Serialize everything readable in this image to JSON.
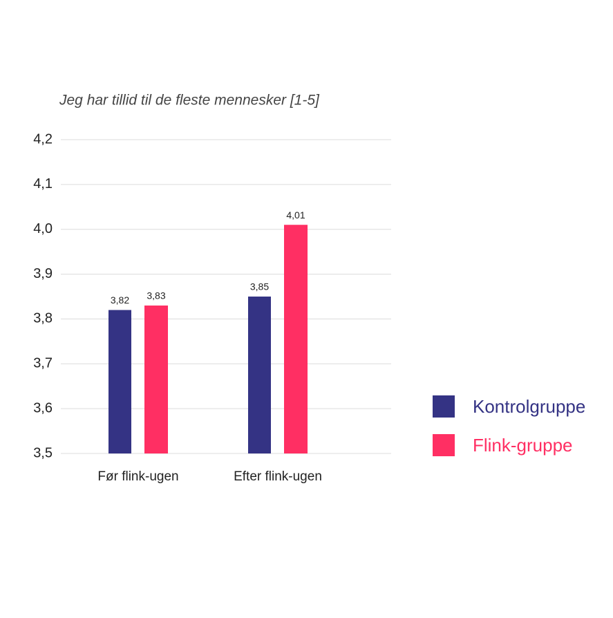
{
  "chart_data": {
    "type": "bar",
    "title": "Jeg har tillid til de fleste mennesker [1-5]",
    "categories": [
      "Før flink-ugen",
      "Efter flink-ugen"
    ],
    "series": [
      {
        "name": "Kontrolgruppe",
        "color": "#343384",
        "values": [
          3.82,
          3.85
        ],
        "value_labels": [
          "3,82",
          "3,85"
        ]
      },
      {
        "name": "Flink-gruppe",
        "color": "#ff2f63",
        "values": [
          3.83,
          4.01
        ],
        "value_labels": [
          "3,83",
          "4,01"
        ]
      }
    ],
    "ylim": [
      3.5,
      4.2
    ],
    "yticks": [
      {
        "value": 3.5,
        "label": "3,5"
      },
      {
        "value": 3.6,
        "label": "3,6"
      },
      {
        "value": 3.7,
        "label": "3,7"
      },
      {
        "value": 3.8,
        "label": "3,8"
      },
      {
        "value": 3.9,
        "label": "3,9"
      },
      {
        "value": 4.0,
        "label": "4,0"
      },
      {
        "value": 4.1,
        "label": "4,1"
      },
      {
        "value": 4.2,
        "label": "4,2"
      }
    ],
    "grid": true,
    "legend": "right"
  }
}
